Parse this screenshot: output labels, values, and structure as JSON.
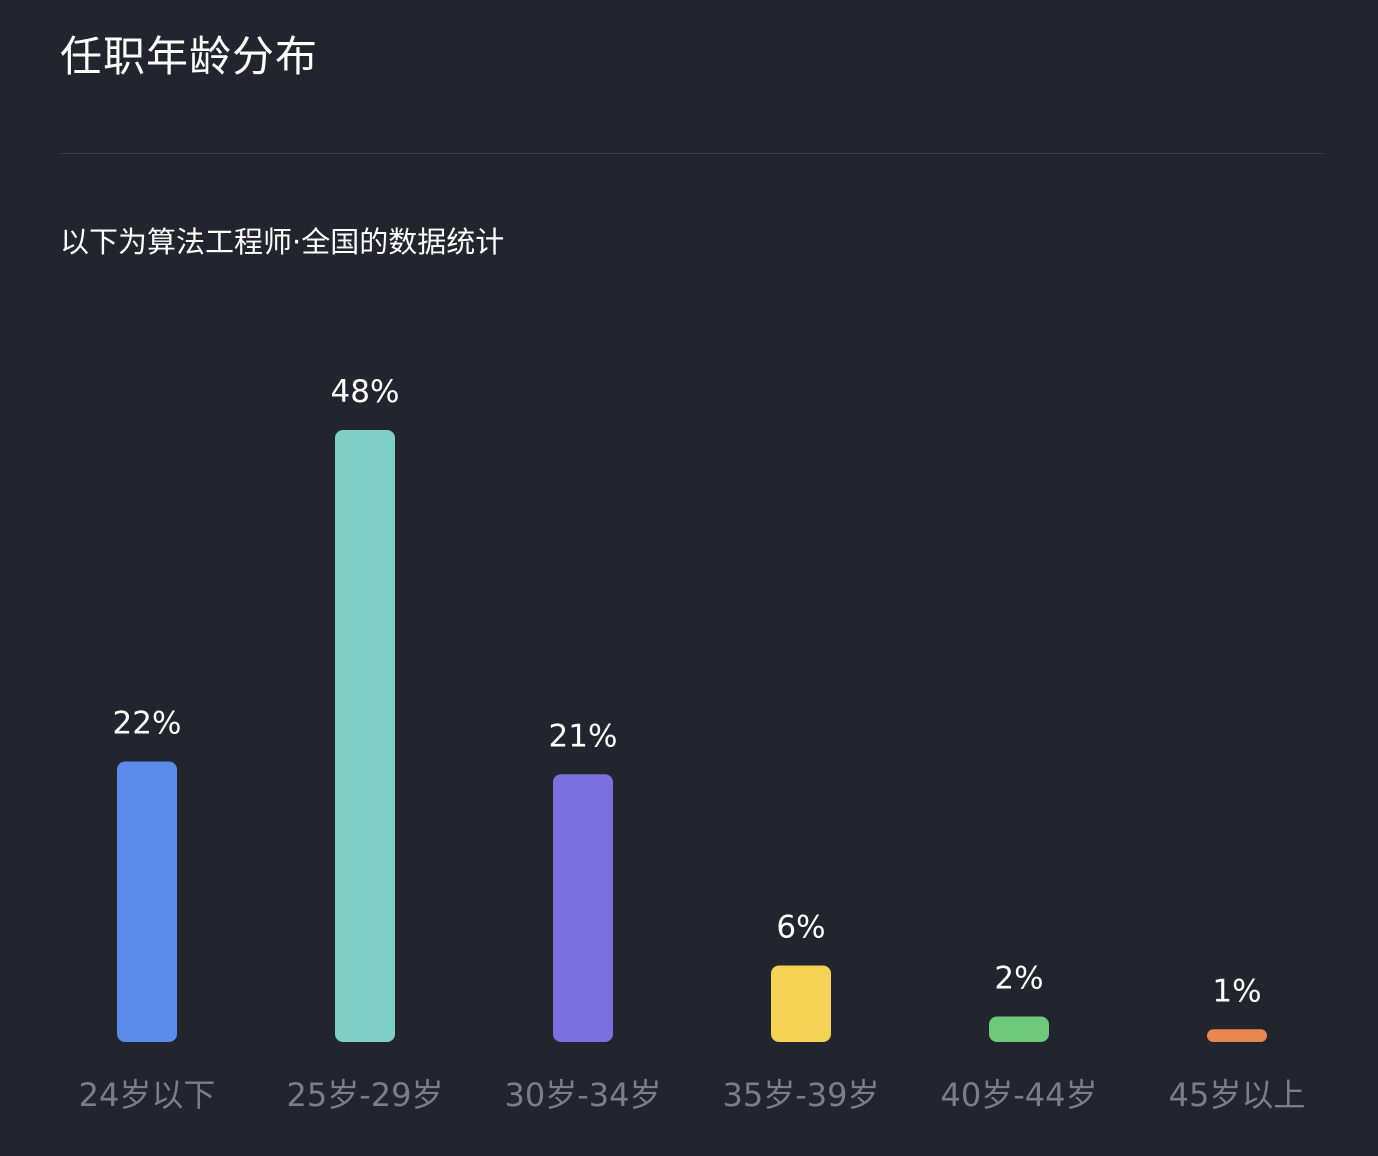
{
  "header": {
    "title": "任职年龄分布"
  },
  "subtitle": "以下为算法工程师·全国的数据统计",
  "chart_data": {
    "type": "bar",
    "categories": [
      "24岁以下",
      "25岁-29岁",
      "30岁-34岁",
      "35岁-39岁",
      "40岁-44岁",
      "45岁以上"
    ],
    "values": [
      22,
      48,
      21,
      6,
      2,
      1
    ],
    "value_labels": [
      "22%",
      "48%",
      "21%",
      "6%",
      "2%",
      "1%"
    ],
    "colors": [
      "#5b8bea",
      "#7ecfc6",
      "#7b70de",
      "#f5d154",
      "#6cc97a",
      "#e8884e"
    ],
    "unit": "%",
    "ylim": [
      0,
      48
    ],
    "grid": false,
    "legend": "none"
  }
}
